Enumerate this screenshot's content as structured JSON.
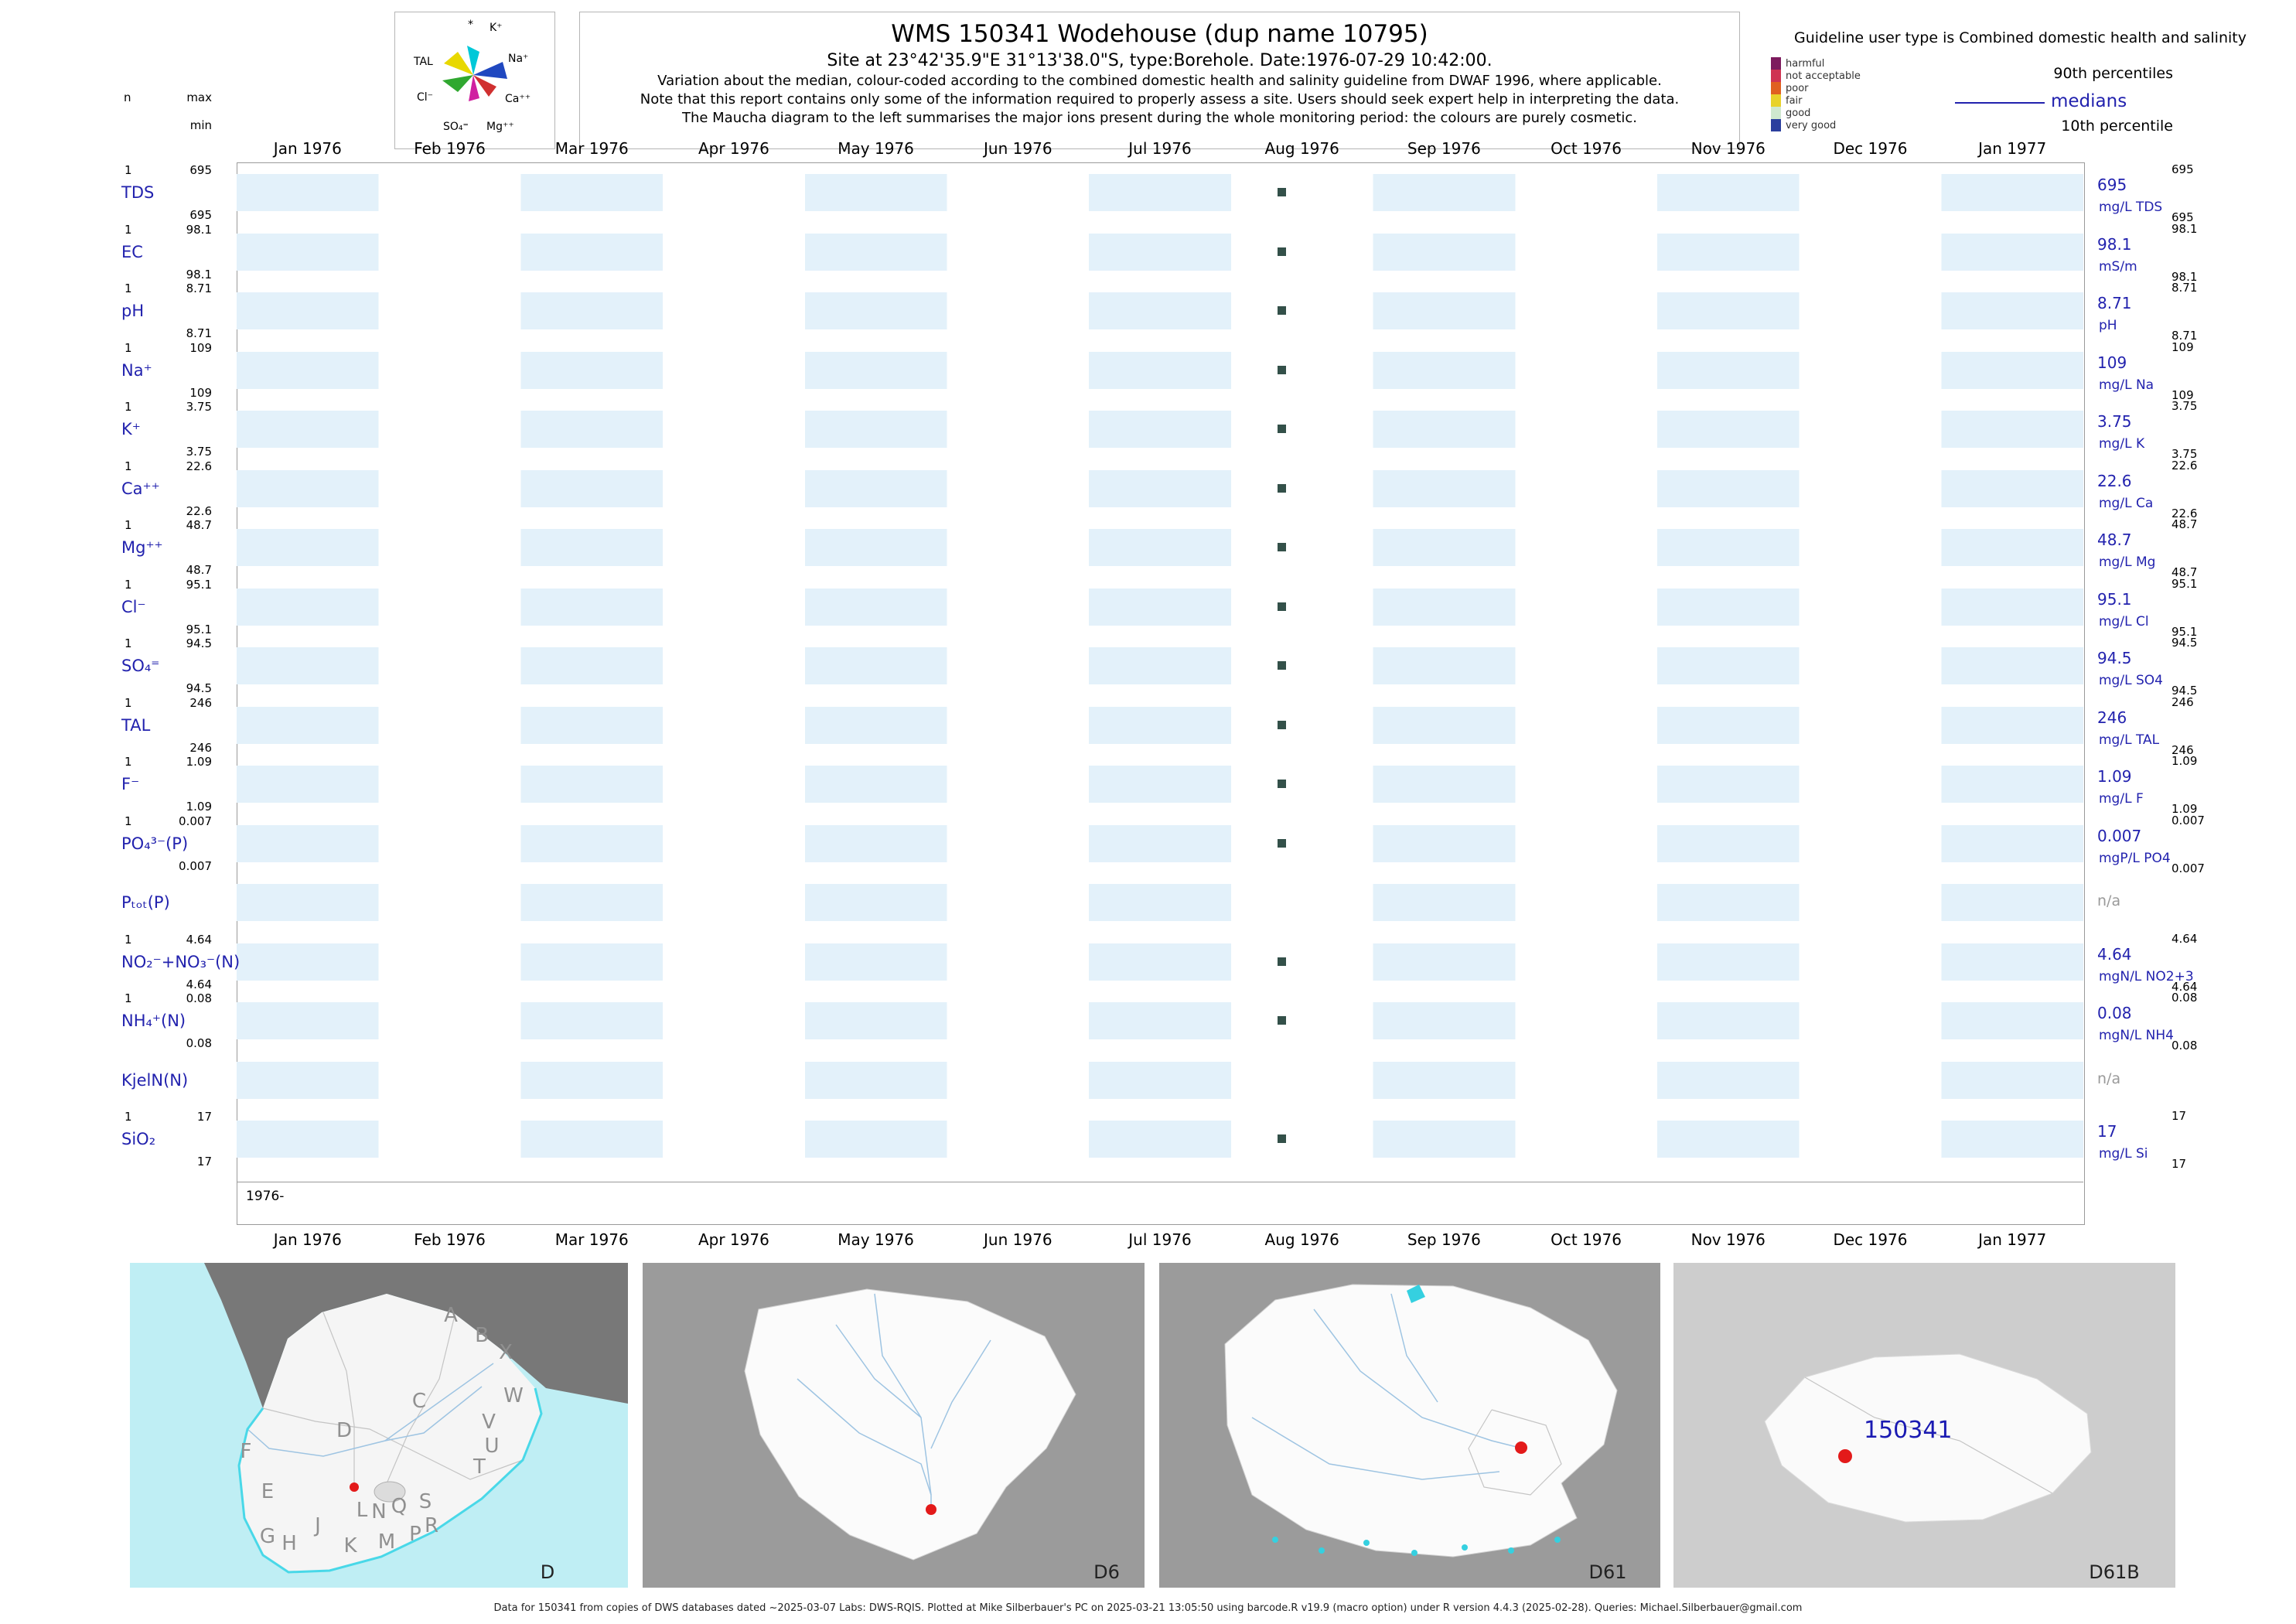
{
  "header": {
    "title": "WMS 150341  Wodehouse (dup name 10795)",
    "subtitle": "Site at 23°42'35.9\"E 31°13'38.0\"S, type:Borehole. Date:1976-07-29 10:42:00.",
    "note1": "Variation about the median,  colour-coded according to the combined domestic health and salinity guideline from DWAF 1996, where applicable.",
    "note2": "Note that this report contains only some of the information required to properly assess a site. Users should seek expert help in interpreting the data.",
    "note3": "The Maucha diagram to the left summarises the major ions present during the whole monitoring period: the colours are purely cosmetic."
  },
  "maucha": {
    "labels": [
      "*",
      "K⁺",
      "TAL",
      "Na⁺",
      "Cl⁻",
      "Ca⁺⁺",
      "SO₄⁼",
      "Mg⁺⁺"
    ]
  },
  "legend": {
    "title": "Guideline user type is Combined domestic health and salinity",
    "quality_levels": [
      {
        "label": "harmful",
        "color": "#7d1b5e"
      },
      {
        "label": "not acceptable",
        "color": "#cf3352"
      },
      {
        "label": "poor",
        "color": "#e06020"
      },
      {
        "label": "fair",
        "color": "#e8d22a"
      },
      {
        "label": "good",
        "color": "#cfe8cf"
      },
      {
        "label": "very good",
        "color": "#2b3f9e"
      }
    ],
    "p90": "90th percentiles",
    "median": "medians",
    "p10": "10th percentile"
  },
  "left_header": {
    "n": "n",
    "max": "max",
    "min": "min"
  },
  "axis": {
    "months": [
      "Jan 1976",
      "Feb 1976",
      "Mar 1976",
      "Apr 1976",
      "May 1976",
      "Jun 1976",
      "Jul 1976",
      "Aug 1976",
      "Sep 1976",
      "Oct 1976",
      "Nov 1976",
      "Dec 1976",
      "Jan 1977"
    ],
    "year_label": "1976-"
  },
  "rows": [
    {
      "param": "TDS",
      "has_data": true,
      "n": "1",
      "max": "695",
      "min": "695",
      "p90": "695",
      "median": "695",
      "unit": "mg/L TDS",
      "p10": "695"
    },
    {
      "param": "EC",
      "has_data": true,
      "n": "1",
      "max": "98.1",
      "min": "98.1",
      "p90": "98.1",
      "median": "98.1",
      "unit": "mS/m",
      "p10": "98.1"
    },
    {
      "param": "pH",
      "has_data": true,
      "n": "1",
      "max": "8.71",
      "min": "8.71",
      "p90": "8.71",
      "median": "8.71",
      "unit": "pH",
      "p10": "8.71"
    },
    {
      "param": "Na⁺",
      "has_data": true,
      "n": "1",
      "max": "109",
      "min": "109",
      "p90": "109",
      "median": "109",
      "unit": "mg/L Na",
      "p10": "109"
    },
    {
      "param": "K⁺",
      "has_data": true,
      "n": "1",
      "max": "3.75",
      "min": "3.75",
      "p90": "3.75",
      "median": "3.75",
      "unit": "mg/L K",
      "p10": "3.75"
    },
    {
      "param": "Ca⁺⁺",
      "has_data": true,
      "n": "1",
      "max": "22.6",
      "min": "22.6",
      "p90": "22.6",
      "median": "22.6",
      "unit": "mg/L Ca",
      "p10": "22.6"
    },
    {
      "param": "Mg⁺⁺",
      "has_data": true,
      "n": "1",
      "max": "48.7",
      "min": "48.7",
      "p90": "48.7",
      "median": "48.7",
      "unit": "mg/L Mg",
      "p10": "48.7"
    },
    {
      "param": "Cl⁻",
      "has_data": true,
      "n": "1",
      "max": "95.1",
      "min": "95.1",
      "p90": "95.1",
      "median": "95.1",
      "unit": "mg/L Cl",
      "p10": "95.1"
    },
    {
      "param": "SO₄⁼",
      "has_data": true,
      "n": "1",
      "max": "94.5",
      "min": "94.5",
      "p90": "94.5",
      "median": "94.5",
      "unit": "mg/L SO4",
      "p10": "94.5"
    },
    {
      "param": "TAL",
      "has_data": true,
      "n": "1",
      "max": "246",
      "min": "246",
      "p90": "246",
      "median": "246",
      "unit": "mg/L TAL",
      "p10": "246"
    },
    {
      "param": "F⁻",
      "has_data": true,
      "n": "1",
      "max": "1.09",
      "min": "1.09",
      "p90": "1.09",
      "median": "1.09",
      "unit": "mg/L F",
      "p10": "1.09"
    },
    {
      "param": "PO₄³⁻(P)",
      "has_data": true,
      "n": "1",
      "max": "0.007",
      "min": "0.007",
      "p90": "0.007",
      "median": "0.007",
      "unit": "mgP/L PO4",
      "p10": "0.007"
    },
    {
      "param": "Pₜₒₜ(P)",
      "has_data": false,
      "na": "n/a"
    },
    {
      "param": "NO₂⁻+NO₃⁻(N)",
      "has_data": true,
      "n": "1",
      "max": "4.64",
      "min": "4.64",
      "p90": "4.64",
      "median": "4.64",
      "unit": "mgN/L NO2+3",
      "p10": "4.64"
    },
    {
      "param": "NH₄⁺(N)",
      "has_data": true,
      "n": "1",
      "max": "0.08",
      "min": "0.08",
      "p90": "0.08",
      "median": "0.08",
      "unit": "mgN/L NH4",
      "p10": "0.08"
    },
    {
      "param": "KjelN(N)",
      "has_data": false,
      "na": "n/a"
    },
    {
      "param": "SiO₂",
      "has_data": true,
      "n": "1",
      "max": "17",
      "min": "17",
      "p90": "17",
      "median": "17",
      "unit": "mg/L Si",
      "p10": "17"
    }
  ],
  "maps": {
    "sa_regions": [
      "A",
      "B",
      "X",
      "C",
      "W",
      "V",
      "U",
      "T",
      "D",
      "F",
      "E",
      "S",
      "Q",
      "N",
      "L",
      "J",
      "G",
      "H",
      "K",
      "M",
      "P",
      "R"
    ],
    "panels": [
      {
        "label": "D"
      },
      {
        "label": "D6"
      },
      {
        "label": "D61"
      },
      {
        "label": "D61B"
      }
    ],
    "station_label": "150341"
  },
  "footer": "Data for 150341 from copies of DWS databases dated ~2025-03-07 Labs: DWS-RQIS. Plotted at Mike Silberbauer's PC on 2025-03-21 13:05:50 using barcode.R v19.9 (macro option) under R version 4.4.3 (2025-02-28). Queries: Michael.Silberbauer@gmail.com",
  "chart_data": {
    "type": "scatter",
    "title": "WMS 150341 Wodehouse (dup name 10795)",
    "x_ticks": [
      "Jan 1976",
      "Feb 1976",
      "Mar 1976",
      "Apr 1976",
      "May 1976",
      "Jun 1976",
      "Jul 1976",
      "Aug 1976",
      "Sep 1976",
      "Oct 1976",
      "Nov 1976",
      "Dec 1976",
      "Jan 1977"
    ],
    "sample_dates": [
      "1976-07-29 10:42:00"
    ],
    "series": [
      {
        "name": "TDS",
        "unit": "mg/L",
        "n": 1,
        "x": [
          "1976-07-29"
        ],
        "values": [
          695
        ],
        "median": 695,
        "p90": 695,
        "p10": 695
      },
      {
        "name": "EC",
        "unit": "mS/m",
        "n": 1,
        "x": [
          "1976-07-29"
        ],
        "values": [
          98.1
        ],
        "median": 98.1,
        "p90": 98.1,
        "p10": 98.1
      },
      {
        "name": "pH",
        "unit": "pH",
        "n": 1,
        "x": [
          "1976-07-29"
        ],
        "values": [
          8.71
        ],
        "median": 8.71,
        "p90": 8.71,
        "p10": 8.71
      },
      {
        "name": "Na",
        "unit": "mg/L",
        "n": 1,
        "x": [
          "1976-07-29"
        ],
        "values": [
          109
        ],
        "median": 109,
        "p90": 109,
        "p10": 109
      },
      {
        "name": "K",
        "unit": "mg/L",
        "n": 1,
        "x": [
          "1976-07-29"
        ],
        "values": [
          3.75
        ],
        "median": 3.75,
        "p90": 3.75,
        "p10": 3.75
      },
      {
        "name": "Ca",
        "unit": "mg/L",
        "n": 1,
        "x": [
          "1976-07-29"
        ],
        "values": [
          22.6
        ],
        "median": 22.6,
        "p90": 22.6,
        "p10": 22.6
      },
      {
        "name": "Mg",
        "unit": "mg/L",
        "n": 1,
        "x": [
          "1976-07-29"
        ],
        "values": [
          48.7
        ],
        "median": 48.7,
        "p90": 48.7,
        "p10": 48.7
      },
      {
        "name": "Cl",
        "unit": "mg/L",
        "n": 1,
        "x": [
          "1976-07-29"
        ],
        "values": [
          95.1
        ],
        "median": 95.1,
        "p90": 95.1,
        "p10": 95.1
      },
      {
        "name": "SO4",
        "unit": "mg/L",
        "n": 1,
        "x": [
          "1976-07-29"
        ],
        "values": [
          94.5
        ],
        "median": 94.5,
        "p90": 94.5,
        "p10": 94.5
      },
      {
        "name": "TAL",
        "unit": "mg/L",
        "n": 1,
        "x": [
          "1976-07-29"
        ],
        "values": [
          246
        ],
        "median": 246,
        "p90": 246,
        "p10": 246
      },
      {
        "name": "F",
        "unit": "mg/L",
        "n": 1,
        "x": [
          "1976-07-29"
        ],
        "values": [
          1.09
        ],
        "median": 1.09,
        "p90": 1.09,
        "p10": 1.09
      },
      {
        "name": "PO4(P)",
        "unit": "mgP/L",
        "n": 1,
        "x": [
          "1976-07-29"
        ],
        "values": [
          0.007
        ],
        "median": 0.007,
        "p90": 0.007,
        "p10": 0.007
      },
      {
        "name": "Ptot(P)",
        "unit": "",
        "n": 0,
        "x": [],
        "values": []
      },
      {
        "name": "NO2+NO3(N)",
        "unit": "mgN/L",
        "n": 1,
        "x": [
          "1976-07-29"
        ],
        "values": [
          4.64
        ],
        "median": 4.64,
        "p90": 4.64,
        "p10": 4.64
      },
      {
        "name": "NH4(N)",
        "unit": "mgN/L",
        "n": 1,
        "x": [
          "1976-07-29"
        ],
        "values": [
          0.08
        ],
        "median": 0.08,
        "p90": 0.08,
        "p10": 0.08
      },
      {
        "name": "KjelN(N)",
        "unit": "",
        "n": 0,
        "x": [],
        "values": []
      },
      {
        "name": "SiO2",
        "unit": "mg/L",
        "n": 1,
        "x": [
          "1976-07-29"
        ],
        "values": [
          17
        ],
        "median": 17,
        "p90": 17,
        "p10": 17
      }
    ]
  }
}
